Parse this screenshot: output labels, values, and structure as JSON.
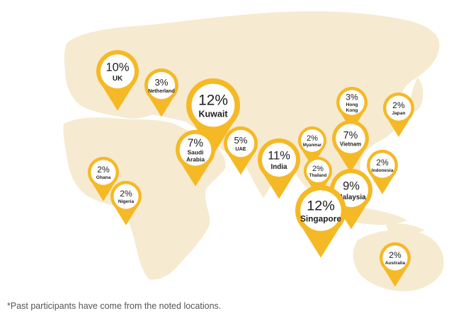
{
  "colors": {
    "pin": "#f5b925",
    "land": "#f6ead0",
    "text": "#1e1e1e",
    "footnote": "#555555"
  },
  "locations": [
    {
      "id": "uk",
      "percent": "10%",
      "name": [
        "UK"
      ]
    },
    {
      "id": "netherland",
      "percent": "3%",
      "name": [
        "Netherland"
      ]
    },
    {
      "id": "kuwait",
      "percent": "12%",
      "name": [
        "Kuwait"
      ]
    },
    {
      "id": "saudi-arabia",
      "percent": "7%",
      "name": [
        "Saudi",
        "Arabia"
      ]
    },
    {
      "id": "uae",
      "percent": "5%",
      "name": [
        "UAE"
      ]
    },
    {
      "id": "india",
      "percent": "11%",
      "name": [
        "India"
      ]
    },
    {
      "id": "myanmar",
      "percent": "2%",
      "name": [
        "Myanmar"
      ]
    },
    {
      "id": "thailand",
      "percent": "2%",
      "name": [
        "Thailand"
      ]
    },
    {
      "id": "hong-kong",
      "percent": "3%",
      "name": [
        "Hong",
        "Kong"
      ]
    },
    {
      "id": "vietnam",
      "percent": "7%",
      "name": [
        "Vietnam"
      ]
    },
    {
      "id": "japan",
      "percent": "2%",
      "name": [
        "Japan"
      ]
    },
    {
      "id": "indonesia",
      "percent": "2%",
      "name": [
        "Indonesia"
      ]
    },
    {
      "id": "malaysia",
      "percent": "9%",
      "name": [
        "Malaysia"
      ]
    },
    {
      "id": "singapore",
      "percent": "12%",
      "name": [
        "Singapore"
      ]
    },
    {
      "id": "ghana",
      "percent": "2%",
      "name": [
        "Ghana"
      ]
    },
    {
      "id": "nigeria",
      "percent": "2%",
      "name": [
        "Nigeria"
      ]
    },
    {
      "id": "australia",
      "percent": "2%",
      "name": [
        "Australia"
      ]
    }
  ],
  "footnote": "*Past participants have come from the noted locations."
}
